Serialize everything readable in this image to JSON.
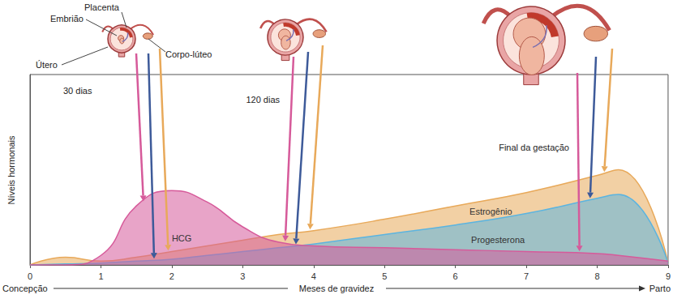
{
  "chart_data": {
    "type": "area",
    "y_label": "Níveis hormonais",
    "x_label": "Meses de gravidez",
    "x_start_label": "Concepção",
    "x_end_label": "Parto",
    "x": [
      0,
      0.5,
      1,
      1.5,
      2,
      2.5,
      3,
      3.5,
      4,
      5,
      6,
      7,
      8,
      8.3,
      9
    ],
    "series": [
      {
        "name": "Estrogênio",
        "color": "#e8a95a",
        "values": [
          0,
          4,
          2,
          4,
          7,
          10,
          13,
          16,
          18,
          24,
          31,
          38,
          47,
          50,
          1
        ]
      },
      {
        "name": "Progesterona",
        "color": "#5bb4e0",
        "values": [
          0,
          0.5,
          1,
          2,
          3,
          5,
          7,
          9,
          11,
          16,
          21,
          27,
          35,
          37,
          1
        ]
      },
      {
        "name": "HCG",
        "color": "#d65a9a",
        "values": [
          0,
          0,
          5,
          31,
          39,
          33,
          20,
          12,
          10,
          9,
          8,
          7,
          6,
          5,
          2
        ]
      }
    ],
    "xlim": [
      0,
      9
    ],
    "xticks": [
      0,
      1,
      2,
      3,
      4,
      5,
      6,
      7,
      8,
      9
    ],
    "ylim": [
      0,
      100
    ],
    "tick_labels": "x",
    "grid": false,
    "annotations": {
      "stages": [
        "30 dias",
        "120 dias",
        "Final da gestação"
      ],
      "parts": {
        "placenta": "Placenta",
        "embryo": "Embrião",
        "uterus": "Útero",
        "corpus_luteum": "Corpo-lúteo"
      }
    }
  }
}
